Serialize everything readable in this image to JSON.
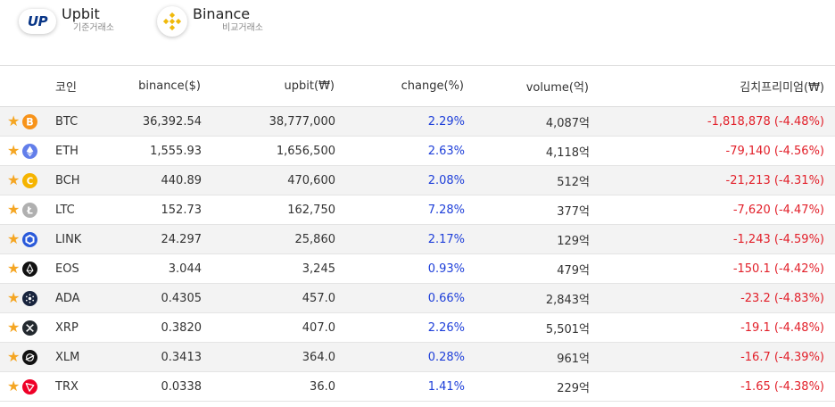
{
  "exchanges": {
    "upbit": {
      "logo_text": "UP",
      "name": "Upbit",
      "sub": "기준거래소"
    },
    "binance": {
      "name": "Binance",
      "sub": "비교거래소"
    }
  },
  "table": {
    "headers": {
      "coin": "코인",
      "binance": "binance($)",
      "upbit": "upbit(₩)",
      "change": "change(%)",
      "volume": "volume(억)",
      "premium": "김치프리미엄(₩)"
    },
    "rows": [
      {
        "icon": "bitcoin-icon",
        "color": "#f7931a",
        "coin": "BTC",
        "binance": "36,392.54",
        "upbit": "38,777,000",
        "change": "2.29%",
        "volume": "4,087억",
        "premium": "-1,818,878 (-4.48%)"
      },
      {
        "icon": "ethereum-icon",
        "color": "#627eea",
        "coin": "ETH",
        "binance": "1,555.93",
        "upbit": "1,656,500",
        "change": "2.63%",
        "volume": "4,118억",
        "premium": "-79,140 (-4.56%)"
      },
      {
        "icon": "bitcoin-cash-icon",
        "color": "#f5b400",
        "coin": "BCH",
        "binance": "440.89",
        "upbit": "470,600",
        "change": "2.08%",
        "volume": "512억",
        "premium": "-21,213 (-4.31%)"
      },
      {
        "icon": "litecoin-icon",
        "color": "#b0b0b0",
        "coin": "LTC",
        "binance": "152.73",
        "upbit": "162,750",
        "change": "7.28%",
        "volume": "377억",
        "premium": "-7,620 (-4.47%)"
      },
      {
        "icon": "chainlink-icon",
        "color": "#2a5ada",
        "coin": "LINK",
        "binance": "24.297",
        "upbit": "25,860",
        "change": "2.17%",
        "volume": "129억",
        "premium": "-1,243 (-4.59%)"
      },
      {
        "icon": "eos-icon",
        "color": "#111111",
        "coin": "EOS",
        "binance": "3.044",
        "upbit": "3,245",
        "change": "0.93%",
        "volume": "479억",
        "premium": "-150.1 (-4.42%)"
      },
      {
        "icon": "cardano-icon",
        "color": "#17233c",
        "coin": "ADA",
        "binance": "0.4305",
        "upbit": "457.0",
        "change": "0.66%",
        "volume": "2,843억",
        "premium": "-23.2 (-4.83%)"
      },
      {
        "icon": "xrp-icon",
        "color": "#23292f",
        "coin": "XRP",
        "binance": "0.3820",
        "upbit": "407.0",
        "change": "2.26%",
        "volume": "5,501억",
        "premium": "-19.1 (-4.48%)"
      },
      {
        "icon": "stellar-icon",
        "color": "#111111",
        "coin": "XLM",
        "binance": "0.3413",
        "upbit": "364.0",
        "change": "0.28%",
        "volume": "961억",
        "premium": "-16.7 (-4.39%)"
      },
      {
        "icon": "tron-icon",
        "color": "#ef0027",
        "coin": "TRX",
        "binance": "0.0338",
        "upbit": "36.0",
        "change": "1.41%",
        "volume": "229억",
        "premium": "-1.65 (-4.38%)"
      }
    ]
  },
  "colors": {
    "change": "#1e3fd9",
    "premium": "#e2202a",
    "star": "#f5a623",
    "upbit_brand": "#093687",
    "binance_brand": "#f0b90b"
  }
}
